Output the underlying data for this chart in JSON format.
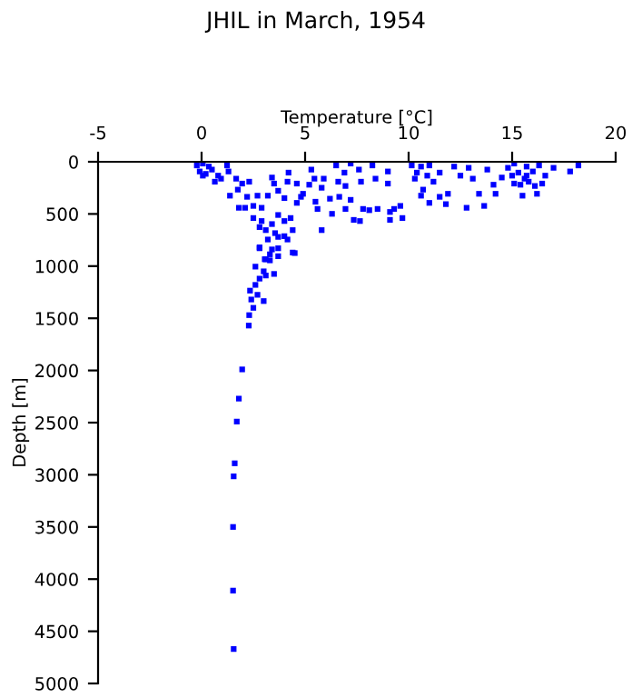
{
  "chart_data": {
    "type": "scatter",
    "title": "JHIL in March, 1954",
    "xlabel": "Temperature [°C]",
    "ylabel": "Depth [m]",
    "xlim": [
      -5,
      20
    ],
    "xticks": [
      -5,
      0,
      5,
      10,
      15,
      20
    ],
    "ylim": [
      5000,
      0
    ],
    "yticks": [
      0,
      500,
      1000,
      1500,
      2000,
      2500,
      3000,
      3500,
      4000,
      4500,
      5000
    ],
    "grid": false,
    "marker": "square",
    "legend": false,
    "series": [
      {
        "color": "#0000ff",
        "x": [
          1.96,
          1.8,
          1.7,
          1.6,
          1.55,
          1.52,
          1.52,
          1.55,
          2.28,
          2.3,
          2.5,
          2.4,
          3.0,
          2.7,
          2.34,
          2.6,
          2.8,
          3.1,
          3.5,
          3.0,
          2.6,
          3.3,
          3.7,
          3.1,
          4.5,
          3.4,
          2.8,
          3.2,
          4.15,
          3.7,
          -0.23,
          0.06,
          0.35,
          -0.09,
          0.2,
          0.5,
          0.06,
          0.8,
          1.23,
          1.3,
          0.64,
          0.94,
          1.67,
          1.96,
          2.3,
          1.37,
          1.75,
          2.2,
          2.7,
          1.8,
          2.1,
          2.5,
          2.9,
          3.2,
          3.4,
          3.5,
          3.7,
          4.0,
          4.15,
          4.2,
          4.6,
          4.6,
          4.8,
          2.5,
          2.9,
          3.4,
          3.7,
          4.0,
          4.3,
          4.4,
          3.1,
          2.8,
          3.55,
          4.0,
          2.8,
          3.3,
          3.7,
          3.05,
          4.4,
          5.3,
          5.45,
          5.2,
          4.9,
          5.5,
          5.8,
          5.9,
          6.5,
          6.9,
          6.6,
          6.95,
          6.2,
          6.65,
          5.6,
          5.8,
          7.2,
          7.6,
          7.7,
          8.4,
          8.25,
          9.0,
          9.0,
          7.2,
          7.8,
          8.1,
          8.5,
          9.1,
          9.3,
          7.35,
          7.65,
          9.1,
          9.7,
          9.6,
          6.95,
          6.3,
          10.15,
          10.4,
          10.6,
          10.3,
          10.9,
          11.0,
          11.5,
          11.2,
          10.7,
          10.6,
          11.5,
          11.0,
          11.9,
          11.8,
          12.2,
          12.5,
          12.9,
          13.1,
          12.8,
          13.65,
          13.4,
          14.1,
          13.8,
          14.2,
          14.5,
          14.8,
          15.1,
          15.3,
          15.6,
          15.7,
          16.0,
          16.3,
          15.8,
          15.4,
          16.1,
          15.5,
          16.2,
          16.6,
          17.0,
          17.8,
          18.2,
          16.45,
          15.1,
          15.7,
          15.0
        ],
        "values": [
          1990,
          2270,
          2490,
          2890,
          3015,
          3500,
          4110,
          4670,
          1570,
          1470,
          1400,
          1320,
          1335,
          1275,
          1235,
          1180,
          1120,
          1090,
          1075,
          1050,
          1005,
          945,
          905,
          935,
          875,
          840,
          820,
          745,
          745,
          720,
          35,
          17,
          46,
          93,
          116,
          75,
          133,
          133,
          35,
          93,
          191,
          162,
          162,
          209,
          191,
          325,
          267,
          336,
          325,
          441,
          441,
          423,
          441,
          325,
          151,
          209,
          278,
          348,
          191,
          104,
          209,
          394,
          336,
          539,
          568,
          597,
          510,
          568,
          539,
          655,
          655,
          626,
          684,
          713,
          829,
          887,
          829,
          934,
          870,
          75,
          162,
          220,
          307,
          383,
          249,
          162,
          35,
          104,
          191,
          232,
          354,
          336,
          452,
          655,
          17,
          75,
          191,
          162,
          35,
          93,
          209,
          365,
          452,
          464,
          452,
          481,
          452,
          557,
          568,
          557,
          539,
          423,
          452,
          499,
          35,
          104,
          46,
          162,
          133,
          35,
          104,
          191,
          267,
          325,
          336,
          394,
          307,
          406,
          46,
          133,
          58,
          162,
          441,
          423,
          307,
          220,
          75,
          307,
          151,
          58,
          17,
          104,
          162,
          46,
          93,
          35,
          191,
          220,
          232,
          325,
          307,
          133,
          58,
          93,
          35,
          209,
          209,
          133,
          133
        ]
      }
    ]
  }
}
